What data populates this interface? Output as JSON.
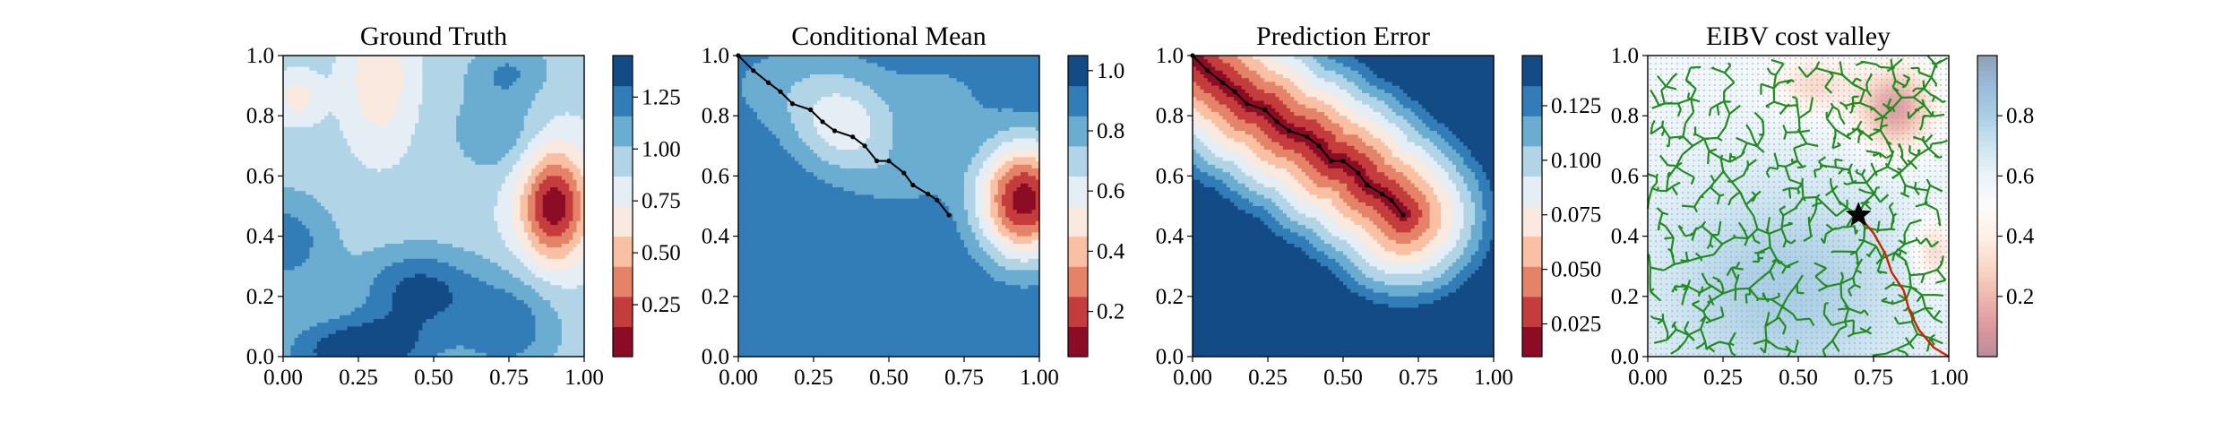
{
  "chart_data": [
    {
      "type": "heatmap",
      "title": "Ground Truth",
      "xlabel": "",
      "ylabel": "",
      "xlim": [
        0,
        1
      ],
      "ylim": [
        0,
        1
      ],
      "x_ticks": [
        "0.00",
        "0.25",
        "0.50",
        "0.75",
        "1.00"
      ],
      "y_ticks": [
        "0.0",
        "0.2",
        "0.4",
        "0.6",
        "0.8",
        "1.0"
      ],
      "colormap": "RdBu",
      "colorbar": {
        "range": [
          0.0,
          1.45
        ],
        "ticks": [
          "0.25",
          "0.50",
          "0.75",
          "1.00",
          "1.25"
        ],
        "tick_values": [
          0.25,
          0.5,
          0.75,
          1.0,
          1.25
        ]
      },
      "levels": 10,
      "field": {
        "base": 0.9,
        "bumps": [
          {
            "x": 0.9,
            "y": 0.5,
            "amp": -0.85,
            "sx": 0.08,
            "sy": 0.13
          },
          {
            "x": 0.32,
            "y": 0.92,
            "amp": -0.32,
            "sx": 0.07,
            "sy": 0.14
          },
          {
            "x": 0.05,
            "y": 0.86,
            "amp": -0.25,
            "sx": 0.05,
            "sy": 0.05
          },
          {
            "x": 0.25,
            "y": 0.02,
            "amp": 0.55,
            "sx": 0.18,
            "sy": 0.08
          },
          {
            "x": 0.45,
            "y": 0.22,
            "amp": 0.45,
            "sx": 0.14,
            "sy": 0.1
          },
          {
            "x": 0.0,
            "y": 0.38,
            "amp": 0.35,
            "sx": 0.12,
            "sy": 0.12
          },
          {
            "x": 0.75,
            "y": 0.1,
            "amp": 0.35,
            "sx": 0.12,
            "sy": 0.12
          },
          {
            "x": 0.7,
            "y": 0.75,
            "amp": 0.25,
            "sx": 0.1,
            "sy": 0.1
          },
          {
            "x": 0.75,
            "y": 0.95,
            "amp": 0.25,
            "sx": 0.1,
            "sy": 0.07
          }
        ]
      }
    },
    {
      "type": "heatmap",
      "title": "Conditional Mean",
      "xlabel": "",
      "ylabel": "",
      "xlim": [
        0,
        1
      ],
      "ylim": [
        0,
        1
      ],
      "x_ticks": [
        "0.00",
        "0.25",
        "0.50",
        "0.75",
        "1.00"
      ],
      "y_ticks": [
        "0.0",
        "0.2",
        "0.4",
        "0.6",
        "0.8",
        "1.0"
      ],
      "colormap": "RdBu",
      "colorbar": {
        "range": [
          0.05,
          1.05
        ],
        "ticks": [
          "0.2",
          "0.4",
          "0.6",
          "0.8",
          "1.0"
        ],
        "tick_values": [
          0.2,
          0.4,
          0.6,
          0.8,
          1.0
        ]
      },
      "levels": 10,
      "field": {
        "base": 0.95,
        "bumps": [
          {
            "x": 0.95,
            "y": 0.52,
            "amp": -0.85,
            "sx": 0.11,
            "sy": 0.14
          },
          {
            "x": 0.35,
            "y": 0.76,
            "amp": -0.3,
            "sx": 0.12,
            "sy": 0.11
          },
          {
            "x": 0.2,
            "y": 0.9,
            "amp": -0.15,
            "sx": 0.2,
            "sy": 0.12
          },
          {
            "x": 0.55,
            "y": 0.6,
            "amp": -0.12,
            "sx": 0.15,
            "sy": 0.1
          },
          {
            "x": 0.68,
            "y": 0.86,
            "amp": -0.12,
            "sx": 0.12,
            "sy": 0.1
          }
        ]
      },
      "path": [
        [
          0.0,
          1.0
        ],
        [
          0.05,
          0.95
        ],
        [
          0.1,
          0.91
        ],
        [
          0.14,
          0.88
        ],
        [
          0.18,
          0.84
        ],
        [
          0.24,
          0.82
        ],
        [
          0.28,
          0.78
        ],
        [
          0.32,
          0.75
        ],
        [
          0.38,
          0.73
        ],
        [
          0.42,
          0.7
        ],
        [
          0.46,
          0.65
        ],
        [
          0.5,
          0.65
        ],
        [
          0.55,
          0.61
        ],
        [
          0.58,
          0.57
        ],
        [
          0.63,
          0.54
        ],
        [
          0.66,
          0.52
        ],
        [
          0.7,
          0.47
        ]
      ]
    },
    {
      "type": "heatmap",
      "title": "Prediction Error",
      "xlabel": "",
      "ylabel": "",
      "xlim": [
        0,
        1
      ],
      "ylim": [
        0,
        1
      ],
      "x_ticks": [
        "0.00",
        "0.25",
        "0.50",
        "0.75",
        "1.00"
      ],
      "y_ticks": [
        "0.0",
        "0.2",
        "0.4",
        "0.6",
        "0.8",
        "1.0"
      ],
      "colormap": "RdBu",
      "colorbar": {
        "range": [
          0.01,
          0.148
        ],
        "ticks": [
          "0.025",
          "0.050",
          "0.075",
          "0.100",
          "0.125"
        ],
        "tick_values": [
          0.025,
          0.05,
          0.075,
          0.1,
          0.125
        ]
      },
      "levels": 10,
      "field": {
        "min": 0.015,
        "max": 0.148,
        "scale": 0.34
      },
      "path": [
        [
          0.0,
          1.0
        ],
        [
          0.05,
          0.95
        ],
        [
          0.1,
          0.91
        ],
        [
          0.14,
          0.88
        ],
        [
          0.18,
          0.84
        ],
        [
          0.24,
          0.82
        ],
        [
          0.28,
          0.78
        ],
        [
          0.32,
          0.75
        ],
        [
          0.38,
          0.73
        ],
        [
          0.42,
          0.7
        ],
        [
          0.46,
          0.65
        ],
        [
          0.5,
          0.65
        ],
        [
          0.55,
          0.61
        ],
        [
          0.58,
          0.57
        ],
        [
          0.63,
          0.54
        ],
        [
          0.66,
          0.52
        ],
        [
          0.7,
          0.47
        ]
      ]
    },
    {
      "type": "heatmap",
      "title": "EIBV cost valley",
      "xlabel": "",
      "ylabel": "",
      "xlim": [
        0,
        1
      ],
      "ylim": [
        0,
        1
      ],
      "x_ticks": [
        "0.00",
        "0.25",
        "0.50",
        "0.75",
        "1.00"
      ],
      "y_ticks": [
        "0.0",
        "0.2",
        "0.4",
        "0.6",
        "0.8",
        "1.0"
      ],
      "colormap": "RdBu (light)",
      "colorbar": {
        "range": [
          0.0,
          1.0
        ],
        "ticks": [
          "0.2",
          "0.4",
          "0.6",
          "0.8"
        ],
        "tick_values": [
          0.2,
          0.4,
          0.6,
          0.8
        ]
      },
      "field": {
        "base": 0.55,
        "bumps": [
          {
            "x": 0.82,
            "y": 0.82,
            "amp": -0.45,
            "sx": 0.09,
            "sy": 0.1
          },
          {
            "x": 0.55,
            "y": 0.9,
            "amp": -0.25,
            "sx": 0.09,
            "sy": 0.07
          },
          {
            "x": 0.95,
            "y": 0.35,
            "amp": -0.3,
            "sx": 0.05,
            "sy": 0.08
          },
          {
            "x": 0.45,
            "y": 0.22,
            "amp": 0.25,
            "sx": 0.35,
            "sy": 0.3
          }
        ]
      },
      "tree_root": [
        0.7,
        0.47
      ],
      "tree_color": "#228b22",
      "planned_path": [
        [
          0.7,
          0.47
        ],
        [
          0.75,
          0.41
        ],
        [
          0.79,
          0.34
        ],
        [
          0.81,
          0.28
        ],
        [
          0.85,
          0.22
        ],
        [
          0.87,
          0.15
        ],
        [
          0.9,
          0.09
        ],
        [
          0.95,
          0.03
        ],
        [
          1.0,
          0.0
        ]
      ],
      "planned_path_color": "#cc2200",
      "marker": "star"
    }
  ]
}
